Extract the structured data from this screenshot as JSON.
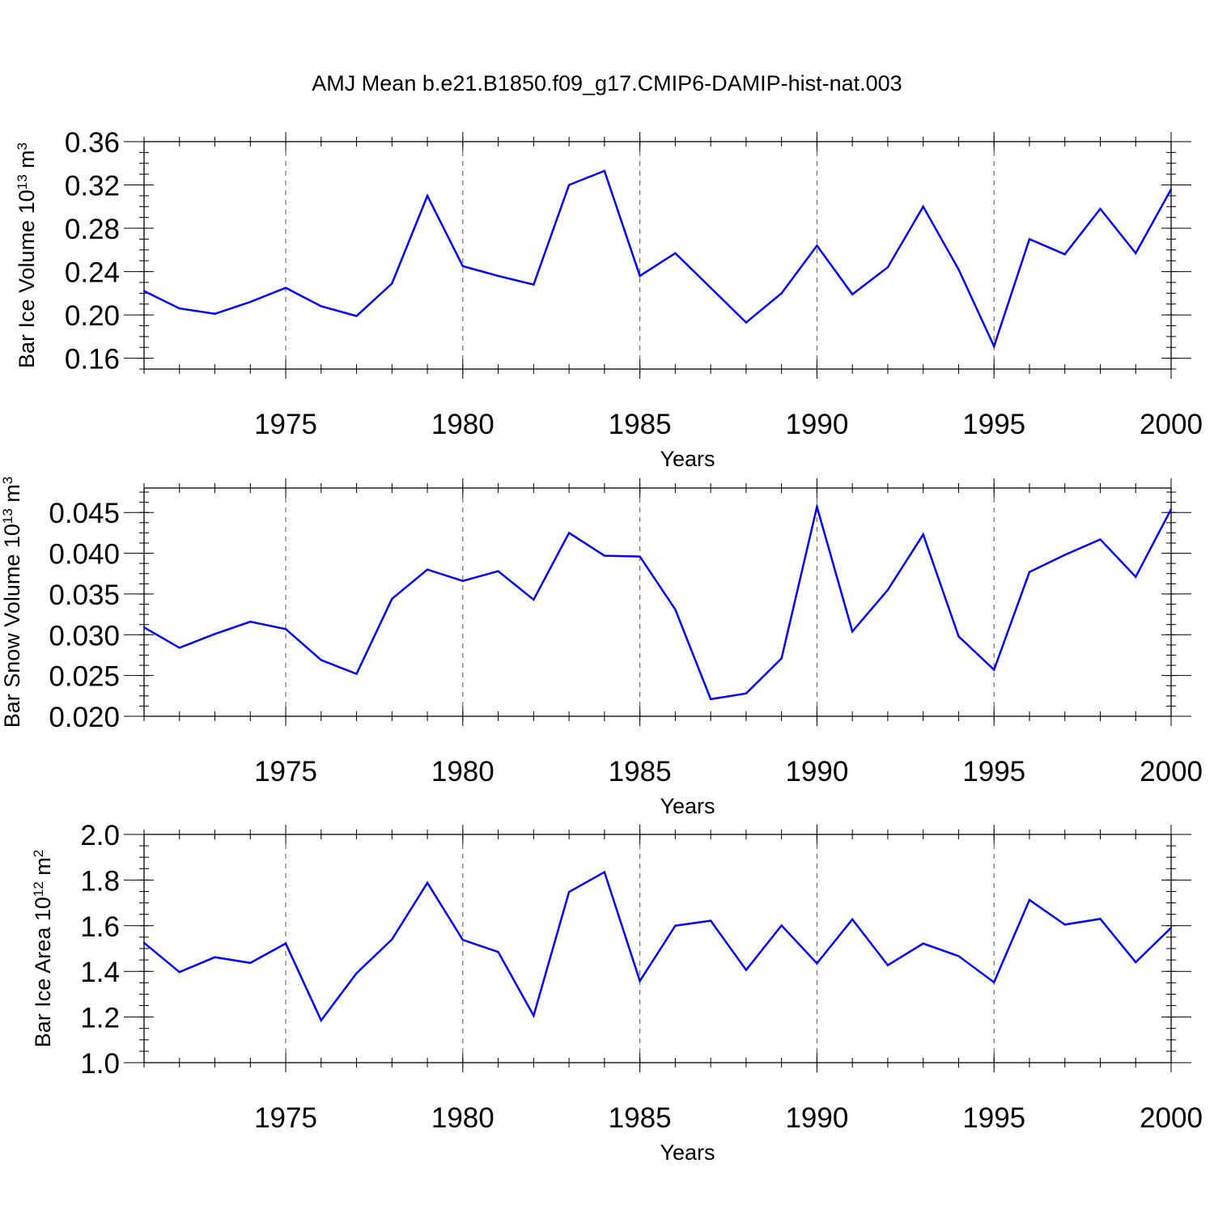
{
  "figure": {
    "title": "AMJ Mean b.e21.B1850.f09_g17.CMIP6-DAMIP-hist-nat.003"
  },
  "colors": {
    "line": "#0000ff",
    "axis": "#000000",
    "grid": "#555555"
  },
  "chart_data": [
    {
      "type": "line",
      "ylabel": {
        "main": "Bar Ice Volume 10",
        "sup": "13",
        "tail": " m",
        "unit_sup": "3"
      },
      "xlabel": "Years",
      "xlim": [
        1971,
        2000
      ],
      "ylim": [
        0.15,
        0.36
      ],
      "yticks": [
        "0.16",
        "0.20",
        "0.24",
        "0.28",
        "0.32",
        "0.36"
      ],
      "xticks": [
        "1975",
        "1980",
        "1985",
        "1990",
        "1995",
        "2000"
      ],
      "grid": "vertical dashed at major x ticks",
      "x": [
        1971,
        1972,
        1973,
        1974,
        1975,
        1976,
        1977,
        1978,
        1979,
        1980,
        1981,
        1982,
        1983,
        1984,
        1985,
        1986,
        1987,
        1988,
        1989,
        1990,
        1991,
        1992,
        1993,
        1994,
        1995,
        1996,
        1997,
        1998,
        1999,
        2000
      ],
      "series": [
        {
          "values": [
            0.222,
            0.206,
            0.201,
            0.212,
            0.225,
            0.208,
            0.199,
            0.229,
            0.31,
            0.245,
            0.236,
            0.228,
            0.32,
            0.333,
            0.236,
            0.257,
            0.225,
            0.193,
            0.22,
            0.264,
            0.219,
            0.244,
            0.3,
            0.242,
            0.171,
            0.27,
            0.256,
            0.298,
            0.257,
            0.316
          ]
        }
      ]
    },
    {
      "type": "line",
      "ylabel": {
        "main": "Bar Snow Volume 10",
        "sup": "13",
        "tail": " m",
        "unit_sup": "3"
      },
      "xlabel": "Years",
      "xlim": [
        1971,
        2000
      ],
      "ylim": [
        0.02,
        0.048
      ],
      "yticks": [
        "0.020",
        "0.025",
        "0.030",
        "0.035",
        "0.040",
        "0.045"
      ],
      "xticks": [
        "1975",
        "1980",
        "1985",
        "1990",
        "1995",
        "2000"
      ],
      "grid": "vertical dashed at major x ticks",
      "x": [
        1971,
        1972,
        1973,
        1974,
        1975,
        1976,
        1977,
        1978,
        1979,
        1980,
        1981,
        1982,
        1983,
        1984,
        1985,
        1986,
        1987,
        1988,
        1989,
        1990,
        1991,
        1992,
        1993,
        1994,
        1995,
        1996,
        1997,
        1998,
        1999,
        2000
      ],
      "series": [
        {
          "values": [
            0.0309,
            0.0284,
            0.0301,
            0.0316,
            0.0307,
            0.0269,
            0.0252,
            0.0344,
            0.038,
            0.0366,
            0.0378,
            0.0343,
            0.0425,
            0.0397,
            0.0396,
            0.0331,
            0.0221,
            0.0228,
            0.0271,
            0.0457,
            0.0304,
            0.0355,
            0.0423,
            0.0298,
            0.0257,
            0.0377,
            0.0398,
            0.0417,
            0.0371,
            0.0454
          ]
        }
      ]
    },
    {
      "type": "line",
      "ylabel": {
        "main": "Bar Ice Area 10",
        "sup": "12",
        "tail": " m",
        "unit_sup": "2"
      },
      "xlabel": "Years",
      "xlim": [
        1971,
        2000
      ],
      "ylim": [
        1.0,
        2.0
      ],
      "yticks": [
        "1.0",
        "1.2",
        "1.4",
        "1.6",
        "1.8",
        "2.0"
      ],
      "xticks": [
        "1975",
        "1980",
        "1985",
        "1990",
        "1995",
        "2000"
      ],
      "grid": "vertical dashed at major x ticks",
      "x": [
        1971,
        1972,
        1973,
        1974,
        1975,
        1976,
        1977,
        1978,
        1979,
        1980,
        1981,
        1982,
        1983,
        1984,
        1985,
        1986,
        1987,
        1988,
        1989,
        1990,
        1991,
        1992,
        1993,
        1994,
        1995,
        1996,
        1997,
        1998,
        1999,
        2000
      ],
      "series": [
        {
          "values": [
            1.525,
            1.397,
            1.462,
            1.437,
            1.522,
            1.185,
            1.392,
            1.54,
            1.788,
            1.538,
            1.485,
            1.206,
            1.748,
            1.835,
            1.358,
            1.6,
            1.622,
            1.406,
            1.601,
            1.435,
            1.628,
            1.427,
            1.522,
            1.467,
            1.352,
            1.713,
            1.605,
            1.63,
            1.44,
            1.591
          ]
        }
      ]
    }
  ]
}
